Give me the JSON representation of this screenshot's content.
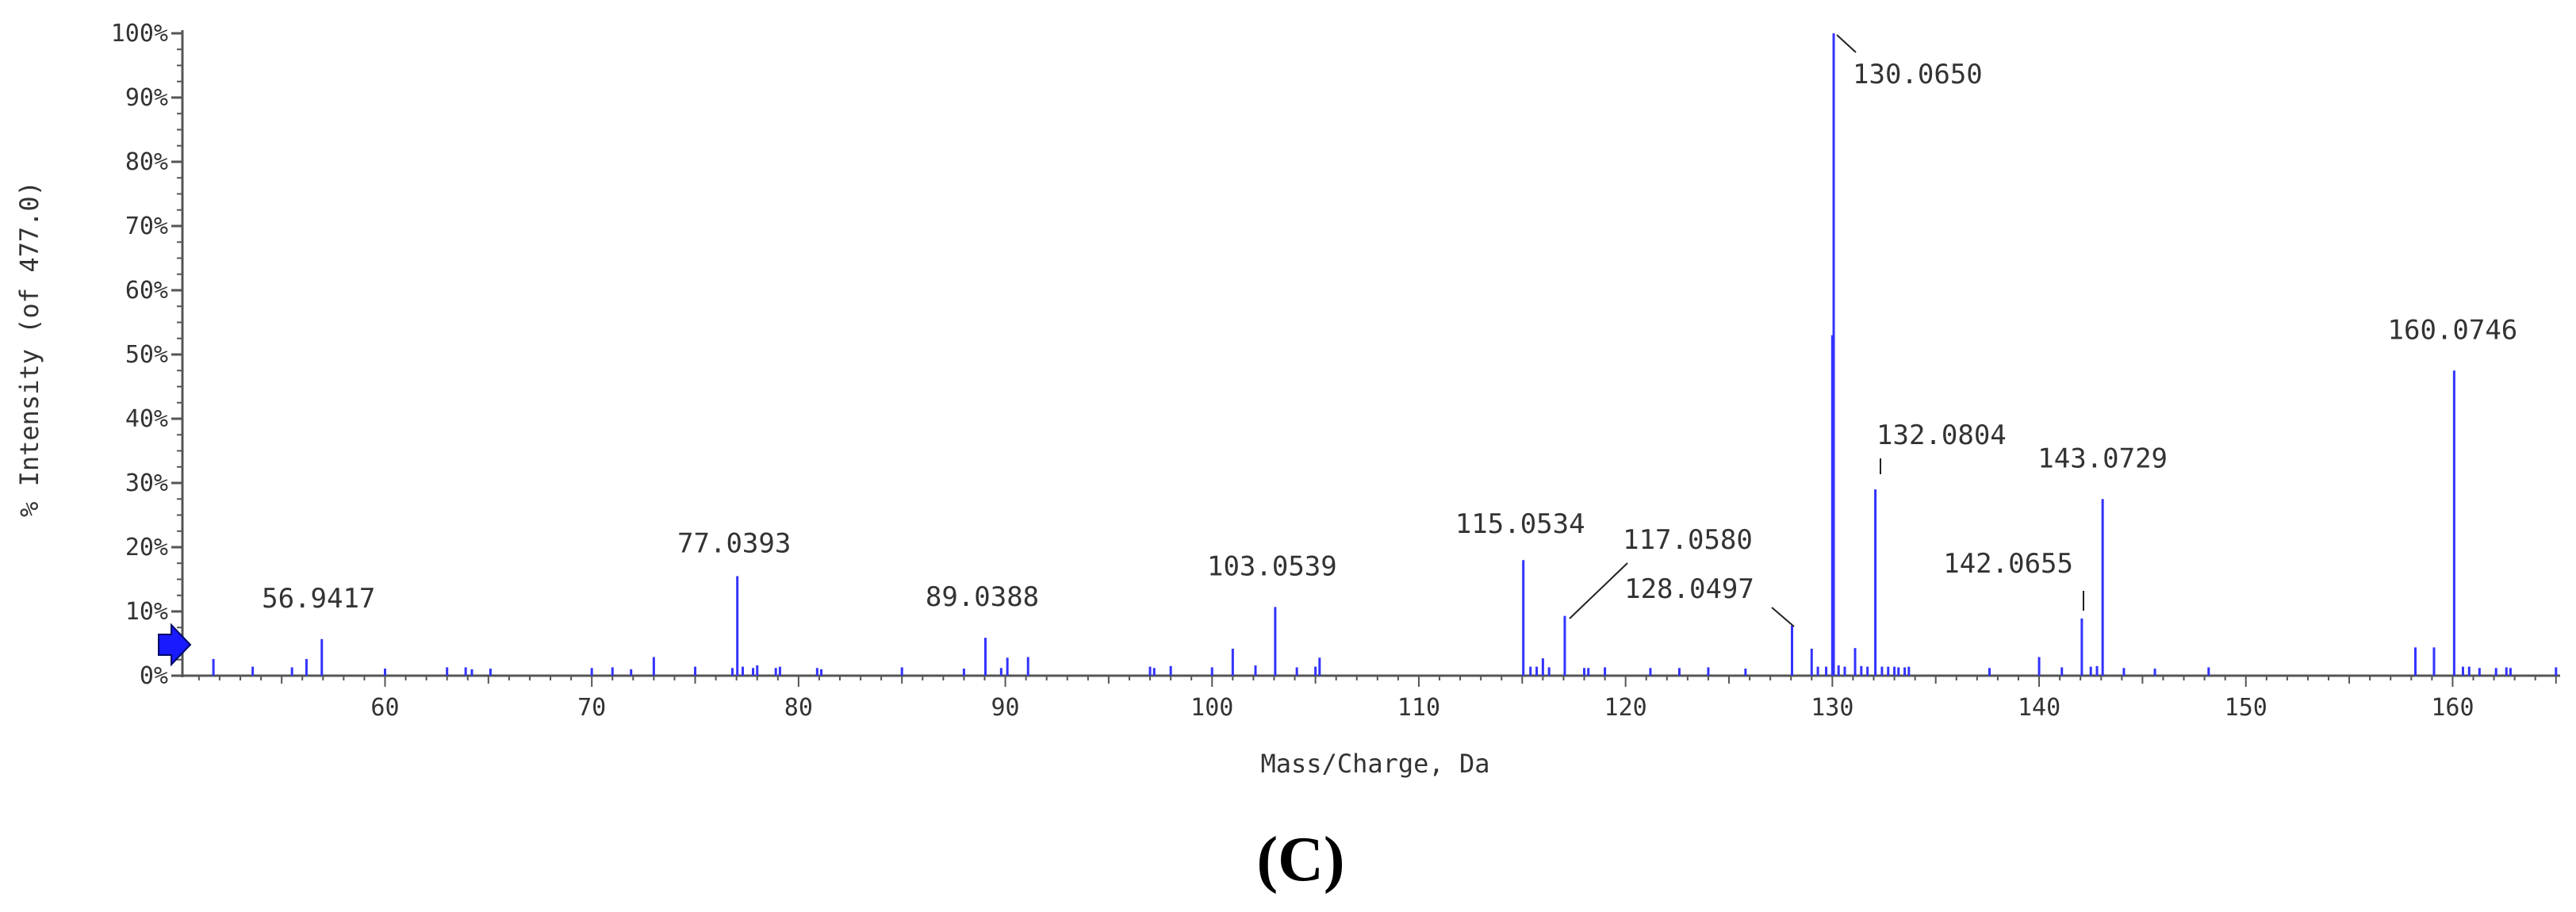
{
  "chart_data": {
    "type": "bar",
    "title": "",
    "xlabel": "Mass/Charge, Da",
    "ylabel": "% Intensity (of 477.0)",
    "xlim": [
      50.2,
      165.2
    ],
    "ylim": [
      0,
      100
    ],
    "x_ticks": [
      60,
      70,
      80,
      90,
      100,
      110,
      120,
      130,
      140,
      150,
      160
    ],
    "y_ticks": [
      "0%",
      "10%",
      "20%",
      "30%",
      "40%",
      "50%",
      "60%",
      "70%",
      "80%",
      "90%",
      "100%"
    ],
    "grid": false,
    "legend": "none",
    "panel_label": "(C)",
    "bar_color": "#3333ff",
    "marker_color": "#1a1aff",
    "peaks": [
      {
        "mz": 51.7,
        "intensity": 2.6
      },
      {
        "mz": 53.6,
        "intensity": 1.4
      },
      {
        "mz": 55.5,
        "intensity": 1.3
      },
      {
        "mz": 56.2,
        "intensity": 2.6
      },
      {
        "mz": 56.9417,
        "intensity": 5.7,
        "label": "56.9417"
      },
      {
        "mz": 60.0,
        "intensity": 1.1
      },
      {
        "mz": 63.0,
        "intensity": 1.3
      },
      {
        "mz": 63.9,
        "intensity": 1.3
      },
      {
        "mz": 64.2,
        "intensity": 1.0
      },
      {
        "mz": 65.1,
        "intensity": 1.1
      },
      {
        "mz": 70.0,
        "intensity": 1.2
      },
      {
        "mz": 71.0,
        "intensity": 1.3
      },
      {
        "mz": 71.9,
        "intensity": 1.0
      },
      {
        "mz": 73.0,
        "intensity": 2.9
      },
      {
        "mz": 75.0,
        "intensity": 1.4
      },
      {
        "mz": 76.8,
        "intensity": 1.2
      },
      {
        "mz": 77.0393,
        "intensity": 15.5,
        "label": "77.0393"
      },
      {
        "mz": 77.3,
        "intensity": 1.4
      },
      {
        "mz": 77.8,
        "intensity": 1.2
      },
      {
        "mz": 78.0,
        "intensity": 1.6
      },
      {
        "mz": 78.9,
        "intensity": 1.2
      },
      {
        "mz": 79.1,
        "intensity": 1.4
      },
      {
        "mz": 80.9,
        "intensity": 1.2
      },
      {
        "mz": 81.1,
        "intensity": 1.0
      },
      {
        "mz": 85.0,
        "intensity": 1.3
      },
      {
        "mz": 88.0,
        "intensity": 1.1
      },
      {
        "mz": 89.0388,
        "intensity": 5.9,
        "label": "89.0388"
      },
      {
        "mz": 89.8,
        "intensity": 1.2
      },
      {
        "mz": 90.1,
        "intensity": 2.8
      },
      {
        "mz": 91.1,
        "intensity": 2.9
      },
      {
        "mz": 97.0,
        "intensity": 1.4
      },
      {
        "mz": 97.2,
        "intensity": 1.2
      },
      {
        "mz": 98.0,
        "intensity": 1.5
      },
      {
        "mz": 100.0,
        "intensity": 1.3
      },
      {
        "mz": 101.0,
        "intensity": 4.2
      },
      {
        "mz": 102.1,
        "intensity": 1.6
      },
      {
        "mz": 103.0539,
        "intensity": 10.7,
        "label": "103.0539"
      },
      {
        "mz": 104.1,
        "intensity": 1.3
      },
      {
        "mz": 105.0,
        "intensity": 1.4
      },
      {
        "mz": 105.2,
        "intensity": 2.8
      },
      {
        "mz": 115.0534,
        "intensity": 18.0,
        "label": "115.0534"
      },
      {
        "mz": 115.4,
        "intensity": 1.4
      },
      {
        "mz": 115.7,
        "intensity": 1.4
      },
      {
        "mz": 116.0,
        "intensity": 2.7
      },
      {
        "mz": 116.3,
        "intensity": 1.3
      },
      {
        "mz": 117.058,
        "intensity": 9.3,
        "label": "117.0580"
      },
      {
        "mz": 118.0,
        "intensity": 1.2
      },
      {
        "mz": 118.2,
        "intensity": 1.2
      },
      {
        "mz": 119.0,
        "intensity": 1.3
      },
      {
        "mz": 121.2,
        "intensity": 1.2
      },
      {
        "mz": 122.6,
        "intensity": 1.2
      },
      {
        "mz": 124.0,
        "intensity": 1.3
      },
      {
        "mz": 125.8,
        "intensity": 1.1
      },
      {
        "mz": 128.0497,
        "intensity": 7.8,
        "label": "128.0497"
      },
      {
        "mz": 129.0,
        "intensity": 4.2
      },
      {
        "mz": 129.3,
        "intensity": 1.4
      },
      {
        "mz": 129.7,
        "intensity": 1.4
      },
      {
        "mz": 130.0,
        "intensity": 53.0
      },
      {
        "mz": 130.065,
        "intensity": 100.0,
        "label": "130.0650"
      },
      {
        "mz": 130.3,
        "intensity": 1.6
      },
      {
        "mz": 130.6,
        "intensity": 1.4
      },
      {
        "mz": 131.1,
        "intensity": 4.3
      },
      {
        "mz": 131.4,
        "intensity": 1.5
      },
      {
        "mz": 131.7,
        "intensity": 1.4
      },
      {
        "mz": 132.0804,
        "intensity": 29.0,
        "label": "132.0804"
      },
      {
        "mz": 132.4,
        "intensity": 1.4
      },
      {
        "mz": 132.7,
        "intensity": 1.4
      },
      {
        "mz": 133.0,
        "intensity": 1.4
      },
      {
        "mz": 133.2,
        "intensity": 1.3
      },
      {
        "mz": 133.5,
        "intensity": 1.3
      },
      {
        "mz": 133.7,
        "intensity": 1.4
      },
      {
        "mz": 137.6,
        "intensity": 1.2
      },
      {
        "mz": 140.0,
        "intensity": 2.9
      },
      {
        "mz": 141.1,
        "intensity": 1.3
      },
      {
        "mz": 142.0655,
        "intensity": 8.9,
        "label": "142.0655"
      },
      {
        "mz": 142.5,
        "intensity": 1.4
      },
      {
        "mz": 142.8,
        "intensity": 1.5
      },
      {
        "mz": 143.0729,
        "intensity": 27.5,
        "label": "143.0729"
      },
      {
        "mz": 144.1,
        "intensity": 1.2
      },
      {
        "mz": 145.6,
        "intensity": 1.1
      },
      {
        "mz": 148.2,
        "intensity": 1.3
      },
      {
        "mz": 158.2,
        "intensity": 4.4
      },
      {
        "mz": 159.1,
        "intensity": 4.4
      },
      {
        "mz": 160.0746,
        "intensity": 47.5,
        "label": "160.0746"
      },
      {
        "mz": 160.5,
        "intensity": 1.4
      },
      {
        "mz": 160.8,
        "intensity": 1.4
      },
      {
        "mz": 161.3,
        "intensity": 1.2
      },
      {
        "mz": 162.1,
        "intensity": 1.2
      },
      {
        "mz": 162.6,
        "intensity": 1.3
      },
      {
        "mz": 162.8,
        "intensity": 1.2
      },
      {
        "mz": 165.0,
        "intensity": 1.3
      }
    ]
  }
}
